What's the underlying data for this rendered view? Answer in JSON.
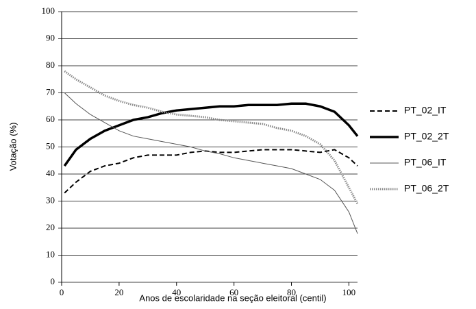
{
  "chart_data": {
    "type": "line",
    "y_label": "Votação (%)",
    "x_label": "Anos de escolaridade na seção eleitoral (centil)",
    "x": [
      1,
      5,
      10,
      15,
      20,
      25,
      30,
      35,
      40,
      45,
      50,
      55,
      60,
      65,
      70,
      75,
      80,
      85,
      90,
      95,
      100,
      103
    ],
    "xlim": [
      0,
      103
    ],
    "xticks": [
      0,
      20,
      40,
      60,
      80,
      100
    ],
    "ylim": [
      0,
      100
    ],
    "yticks": [
      0,
      10,
      20,
      30,
      40,
      50,
      60,
      70,
      80,
      90,
      100
    ],
    "grid": true,
    "legend": "right",
    "series": [
      {
        "name": "PT_02_IT",
        "color": "#000000",
        "style": "dashed",
        "values": [
          33,
          37,
          41,
          43,
          44,
          46,
          47,
          47,
          47,
          48,
          48.5,
          48,
          48,
          48.5,
          49,
          49,
          49,
          48.5,
          48,
          49,
          46,
          43
        ]
      },
      {
        "name": "PT_02_2T",
        "color": "#000000",
        "style": "thick",
        "values": [
          43,
          49,
          53,
          56,
          58,
          60,
          61,
          62.5,
          63.5,
          64,
          64.5,
          65,
          65,
          65.5,
          65.5,
          65.5,
          66,
          66,
          65,
          63,
          58,
          54
        ]
      },
      {
        "name": "PT_06_IT",
        "color": "#555555",
        "style": "thin",
        "values": [
          70,
          66,
          62,
          59,
          56,
          54,
          53,
          52,
          51,
          50,
          48.5,
          47.5,
          46,
          45,
          44,
          43,
          42,
          40,
          38,
          34,
          26,
          18
        ]
      },
      {
        "name": "PT_06_2T",
        "color": "#888888",
        "style": "dotted",
        "values": [
          78,
          75,
          72,
          69,
          67,
          65.5,
          64.5,
          63,
          62,
          61.5,
          61,
          60,
          59.5,
          59,
          58.5,
          57,
          56,
          54,
          51,
          45,
          35,
          29
        ]
      }
    ]
  }
}
